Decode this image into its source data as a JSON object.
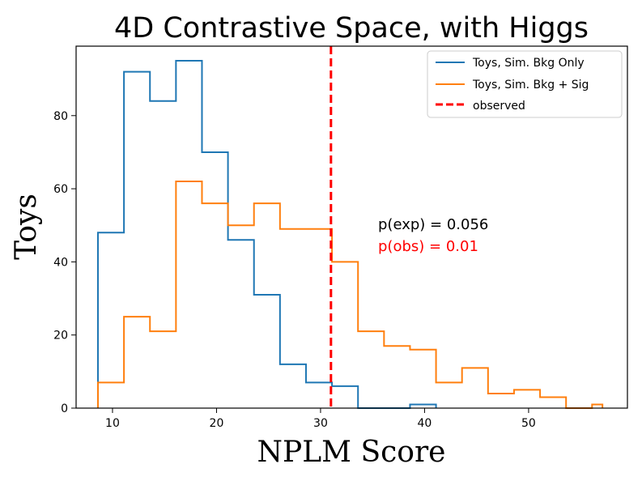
{
  "chart_data": {
    "type": "histogram",
    "title": "4D Contrastive Space, with Higgs",
    "xlabel": "NPLM Score",
    "ylabel": "Toys",
    "xlim": [
      6.5,
      59.5
    ],
    "ylim": [
      0,
      99
    ],
    "xticks": [
      10,
      20,
      30,
      40,
      50
    ],
    "yticks": [
      0,
      20,
      40,
      60,
      80
    ],
    "series": [
      {
        "name": "Toys, Sim. Bkg Only",
        "color": "#1f77b4",
        "edges": [
          8.6,
          11.1,
          13.6,
          16.1,
          18.6,
          21.1,
          23.6,
          26.1,
          28.6,
          31.1,
          33.6,
          36.1,
          38.6,
          41.1
        ],
        "counts": [
          48,
          92,
          84,
          95,
          70,
          46,
          31,
          12,
          7,
          6,
          0,
          0,
          1
        ]
      },
      {
        "name": "Toys, Sim. Bkg + Sig",
        "color": "#ff7f0e",
        "edges": [
          8.6,
          11.1,
          13.6,
          16.1,
          18.6,
          21.1,
          23.6,
          26.1,
          28.6,
          31.1,
          33.6,
          36.1,
          38.6,
          41.1,
          43.6,
          46.1,
          48.6,
          51.1,
          53.6,
          56.1,
          57.1
        ],
        "counts": [
          7,
          25,
          21,
          62,
          56,
          50,
          56,
          49,
          49,
          40,
          21,
          17,
          16,
          7,
          11,
          4,
          5,
          3,
          0,
          1
        ]
      }
    ],
    "observed": {
      "name": "observed",
      "value": 31.0,
      "color": "#ff0000"
    },
    "annotations": [
      {
        "text": "p(exp) = 0.056",
        "color": "#000000"
      },
      {
        "text": "p(obs) = 0.01",
        "color": "#ff0000"
      }
    ],
    "legend_position": "top-right"
  }
}
